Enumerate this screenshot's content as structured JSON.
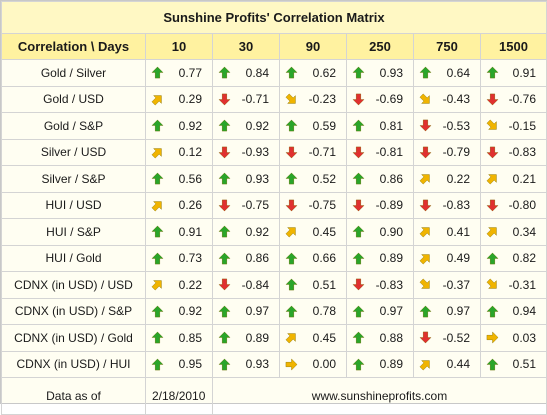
{
  "title": "Sunshine Profits' Correlation Matrix",
  "header": {
    "corner": "Correlation \\ Days",
    "days": [
      "10",
      "30",
      "90",
      "250",
      "750",
      "1500"
    ]
  },
  "colors": {
    "up": "#2aa52a",
    "down": "#e03030",
    "diag": "#f0b400"
  },
  "rows": [
    {
      "label": "Gold / Silver",
      "values": [
        "0.77",
        "0.84",
        "0.62",
        "0.93",
        "0.64",
        "0.91"
      ],
      "arrows": [
        "up-arrow",
        "up-arrow",
        "up-arrow",
        "up-arrow",
        "up-arrow",
        "up-arrow"
      ]
    },
    {
      "label": "Gold / USD",
      "values": [
        "0.29",
        "-0.71",
        "-0.23",
        "-0.69",
        "-0.43",
        "-0.76"
      ],
      "arrows": [
        "up-right-arrow",
        "down-arrow",
        "down-right-arrow",
        "down-arrow",
        "down-right-arrow",
        "down-arrow"
      ]
    },
    {
      "label": "Gold / S&P",
      "values": [
        "0.92",
        "0.92",
        "0.59",
        "0.81",
        "-0.53",
        "-0.15"
      ],
      "arrows": [
        "up-arrow",
        "up-arrow",
        "up-arrow",
        "up-arrow",
        "down-arrow",
        "down-right-arrow"
      ]
    },
    {
      "label": "Silver / USD",
      "values": [
        "0.12",
        "-0.93",
        "-0.71",
        "-0.81",
        "-0.79",
        "-0.83"
      ],
      "arrows": [
        "up-right-arrow",
        "down-arrow",
        "down-arrow",
        "down-arrow",
        "down-arrow",
        "down-arrow"
      ]
    },
    {
      "label": "Silver / S&P",
      "values": [
        "0.56",
        "0.93",
        "0.52",
        "0.86",
        "0.22",
        "0.21"
      ],
      "arrows": [
        "up-arrow",
        "up-arrow",
        "up-arrow",
        "up-arrow",
        "up-right-arrow",
        "up-right-arrow"
      ]
    },
    {
      "label": "HUI / USD",
      "values": [
        "0.26",
        "-0.75",
        "-0.75",
        "-0.89",
        "-0.83",
        "-0.80"
      ],
      "arrows": [
        "up-right-arrow",
        "down-arrow",
        "down-arrow",
        "down-arrow",
        "down-arrow",
        "down-arrow"
      ]
    },
    {
      "label": "HUI / S&P",
      "values": [
        "0.91",
        "0.92",
        "0.45",
        "0.90",
        "0.41",
        "0.34"
      ],
      "arrows": [
        "up-arrow",
        "up-arrow",
        "up-right-arrow",
        "up-arrow",
        "up-right-arrow",
        "up-right-arrow"
      ]
    },
    {
      "label": "HUI / Gold",
      "values": [
        "0.73",
        "0.86",
        "0.66",
        "0.89",
        "0.49",
        "0.82"
      ],
      "arrows": [
        "up-arrow",
        "up-arrow",
        "up-arrow",
        "up-arrow",
        "up-right-arrow",
        "up-arrow"
      ]
    },
    {
      "label": "CDNX (in USD) / USD",
      "values": [
        "0.22",
        "-0.84",
        "0.51",
        "-0.83",
        "-0.37",
        "-0.31"
      ],
      "arrows": [
        "up-right-arrow",
        "down-arrow",
        "up-arrow",
        "down-arrow",
        "down-right-arrow",
        "down-right-arrow"
      ]
    },
    {
      "label": "CDNX (in USD) / S&P",
      "values": [
        "0.92",
        "0.97",
        "0.78",
        "0.97",
        "0.97",
        "0.94"
      ],
      "arrows": [
        "up-arrow",
        "up-arrow",
        "up-arrow",
        "up-arrow",
        "up-arrow",
        "up-arrow"
      ]
    },
    {
      "label": "CDNX (in USD) / Gold",
      "values": [
        "0.85",
        "0.89",
        "0.45",
        "0.88",
        "-0.52",
        "0.03"
      ],
      "arrows": [
        "up-arrow",
        "up-arrow",
        "up-right-arrow",
        "up-arrow",
        "down-arrow",
        "right-arrow"
      ]
    },
    {
      "label": "CDNX (in USD) / HUI",
      "values": [
        "0.95",
        "0.93",
        "0.00",
        "0.89",
        "0.44",
        "0.51"
      ],
      "arrows": [
        "up-arrow",
        "up-arrow",
        "right-arrow",
        "up-arrow",
        "up-right-arrow",
        "up-arrow"
      ]
    }
  ],
  "footer": {
    "label": "Data as of",
    "date": "2/18/2010",
    "site": "www.sunshineprofits.com"
  }
}
